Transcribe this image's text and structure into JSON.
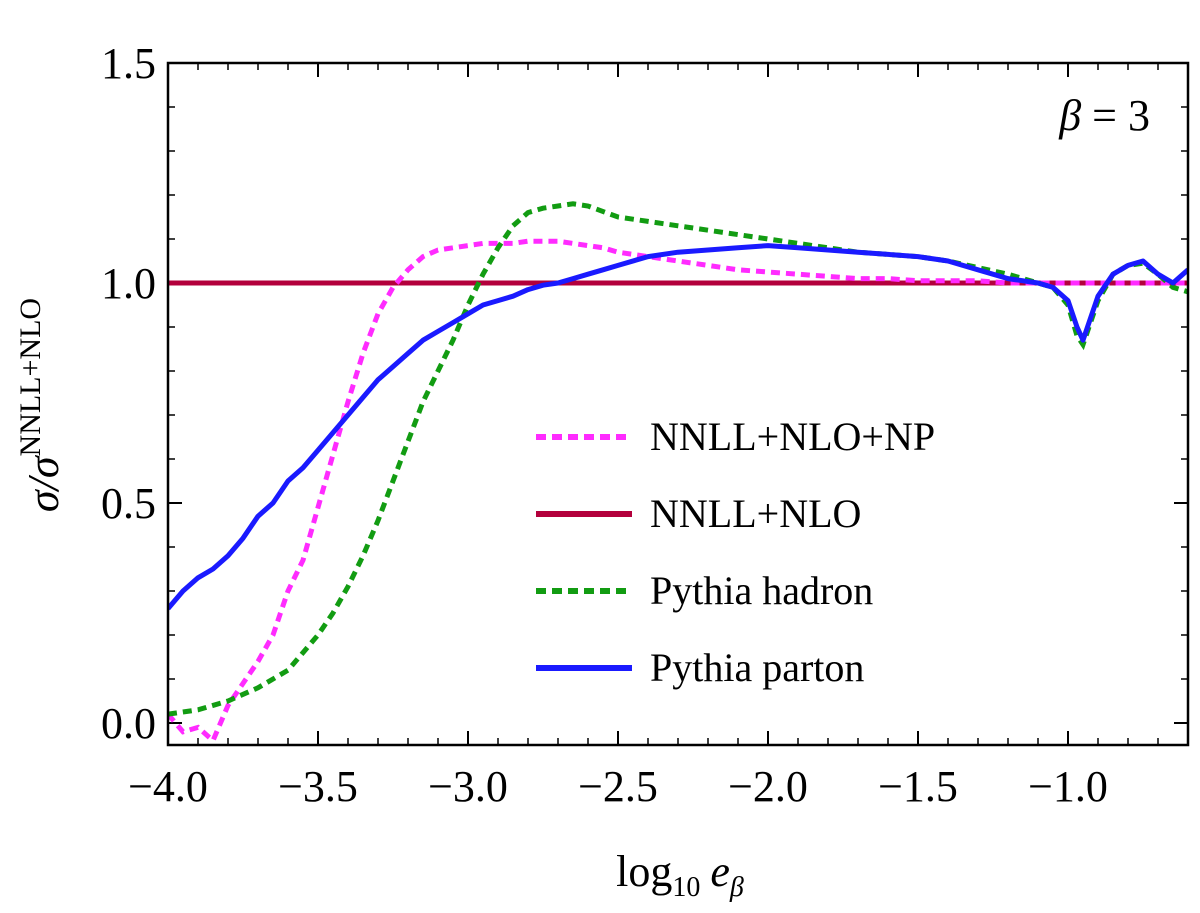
{
  "chart_data": {
    "type": "line",
    "title": "",
    "xlabel": "log10 eβ",
    "xlabel_parts": {
      "base": "log",
      "sub": "10",
      "var": "e",
      "var_sub": "β"
    },
    "ylabel": "σ/σNNLL+NLO",
    "ylabel_parts": {
      "main": "σ/σ",
      "sup": "NNLL+NLO"
    },
    "xlim": [
      -4.0,
      -0.6
    ],
    "ylim": [
      -0.05,
      1.5
    ],
    "xticks": [
      -4.0,
      -3.5,
      -3.0,
      -2.5,
      -2.0,
      -1.5,
      -1.0
    ],
    "xtick_labels": [
      "−4.0",
      "−3.5",
      "−3.0",
      "−2.5",
      "−2.0",
      "−1.5",
      "−1.0"
    ],
    "yticks": [
      0.0,
      0.5,
      1.0,
      1.5
    ],
    "ytick_labels": [
      "0.0",
      "0.5",
      "1.0",
      "1.5"
    ],
    "annotation": {
      "lhs": "β",
      "rhs": " = 3"
    },
    "legend_position": "center-right",
    "series": [
      {
        "name": "NNLL+NLO+NP",
        "color": "#ff2bff",
        "style": "dashed",
        "x": [
          -4.0,
          -3.95,
          -3.9,
          -3.85,
          -3.8,
          -3.75,
          -3.7,
          -3.65,
          -3.6,
          -3.55,
          -3.5,
          -3.45,
          -3.4,
          -3.35,
          -3.3,
          -3.25,
          -3.2,
          -3.15,
          -3.1,
          -3.05,
          -3.0,
          -2.95,
          -2.9,
          -2.85,
          -2.8,
          -2.75,
          -2.7,
          -2.65,
          -2.6,
          -2.55,
          -2.5,
          -2.4,
          -2.3,
          -2.2,
          -2.1,
          -2.0,
          -1.9,
          -1.8,
          -1.7,
          -1.6,
          -1.5,
          -1.4,
          -1.3,
          -1.2,
          -1.1,
          -1.0,
          -0.9,
          -0.8,
          -0.7,
          -0.6
        ],
        "y": [
          0.02,
          -0.02,
          -0.01,
          -0.04,
          0.04,
          0.09,
          0.14,
          0.2,
          0.3,
          0.37,
          0.49,
          0.61,
          0.73,
          0.84,
          0.93,
          0.99,
          1.03,
          1.06,
          1.075,
          1.08,
          1.085,
          1.09,
          1.09,
          1.09,
          1.095,
          1.095,
          1.095,
          1.09,
          1.085,
          1.08,
          1.07,
          1.06,
          1.05,
          1.04,
          1.03,
          1.025,
          1.02,
          1.015,
          1.01,
          1.01,
          1.005,
          1.005,
          1.005,
          1.0,
          1.0,
          1.0,
          1.0,
          1.0,
          1.0,
          1.0
        ]
      },
      {
        "name": "NNLL+NLO",
        "color": "#b3003c",
        "style": "solid",
        "x": [
          -4.0,
          -0.6
        ],
        "y": [
          1.0,
          1.0
        ]
      },
      {
        "name": "Pythia hadron",
        "color": "#129c12",
        "style": "dashed",
        "x": [
          -4.0,
          -3.9,
          -3.8,
          -3.7,
          -3.6,
          -3.5,
          -3.45,
          -3.4,
          -3.35,
          -3.3,
          -3.25,
          -3.2,
          -3.15,
          -3.1,
          -3.05,
          -3.0,
          -2.95,
          -2.9,
          -2.85,
          -2.8,
          -2.75,
          -2.7,
          -2.65,
          -2.6,
          -2.5,
          -2.4,
          -2.3,
          -2.2,
          -2.1,
          -2.0,
          -1.9,
          -1.8,
          -1.7,
          -1.6,
          -1.5,
          -1.4,
          -1.3,
          -1.2,
          -1.1,
          -1.05,
          -1.0,
          -0.97,
          -0.95,
          -0.92,
          -0.9,
          -0.85,
          -0.8,
          -0.75,
          -0.7,
          -0.65,
          -0.6
        ],
        "y": [
          0.02,
          0.03,
          0.05,
          0.08,
          0.12,
          0.2,
          0.25,
          0.31,
          0.38,
          0.46,
          0.55,
          0.64,
          0.73,
          0.8,
          0.87,
          0.95,
          1.02,
          1.08,
          1.13,
          1.16,
          1.17,
          1.175,
          1.18,
          1.175,
          1.15,
          1.14,
          1.13,
          1.12,
          1.11,
          1.1,
          1.09,
          1.08,
          1.07,
          1.065,
          1.06,
          1.05,
          1.035,
          1.02,
          1.0,
          0.99,
          0.95,
          0.88,
          0.86,
          0.92,
          0.96,
          1.02,
          1.04,
          1.045,
          1.02,
          0.99,
          0.98
        ]
      },
      {
        "name": "Pythia parton",
        "color": "#1a1aff",
        "style": "solid",
        "x": [
          -4.0,
          -3.95,
          -3.9,
          -3.85,
          -3.8,
          -3.75,
          -3.7,
          -3.65,
          -3.6,
          -3.55,
          -3.5,
          -3.45,
          -3.4,
          -3.35,
          -3.3,
          -3.25,
          -3.2,
          -3.15,
          -3.1,
          -3.05,
          -3.0,
          -2.95,
          -2.9,
          -2.85,
          -2.8,
          -2.75,
          -2.7,
          -2.65,
          -2.6,
          -2.55,
          -2.5,
          -2.4,
          -2.3,
          -2.2,
          -2.1,
          -2.0,
          -1.9,
          -1.8,
          -1.7,
          -1.6,
          -1.5,
          -1.4,
          -1.3,
          -1.2,
          -1.1,
          -1.05,
          -1.0,
          -0.97,
          -0.95,
          -0.92,
          -0.9,
          -0.85,
          -0.8,
          -0.75,
          -0.7,
          -0.65,
          -0.6
        ],
        "y": [
          0.26,
          0.3,
          0.33,
          0.35,
          0.38,
          0.42,
          0.47,
          0.5,
          0.55,
          0.58,
          0.62,
          0.66,
          0.7,
          0.74,
          0.78,
          0.81,
          0.84,
          0.87,
          0.89,
          0.91,
          0.93,
          0.95,
          0.96,
          0.97,
          0.985,
          0.995,
          1.0,
          1.01,
          1.02,
          1.03,
          1.04,
          1.06,
          1.07,
          1.075,
          1.08,
          1.085,
          1.08,
          1.075,
          1.07,
          1.065,
          1.06,
          1.05,
          1.03,
          1.01,
          1.0,
          0.99,
          0.96,
          0.9,
          0.87,
          0.93,
          0.97,
          1.02,
          1.04,
          1.05,
          1.02,
          1.0,
          1.03
        ]
      }
    ]
  }
}
